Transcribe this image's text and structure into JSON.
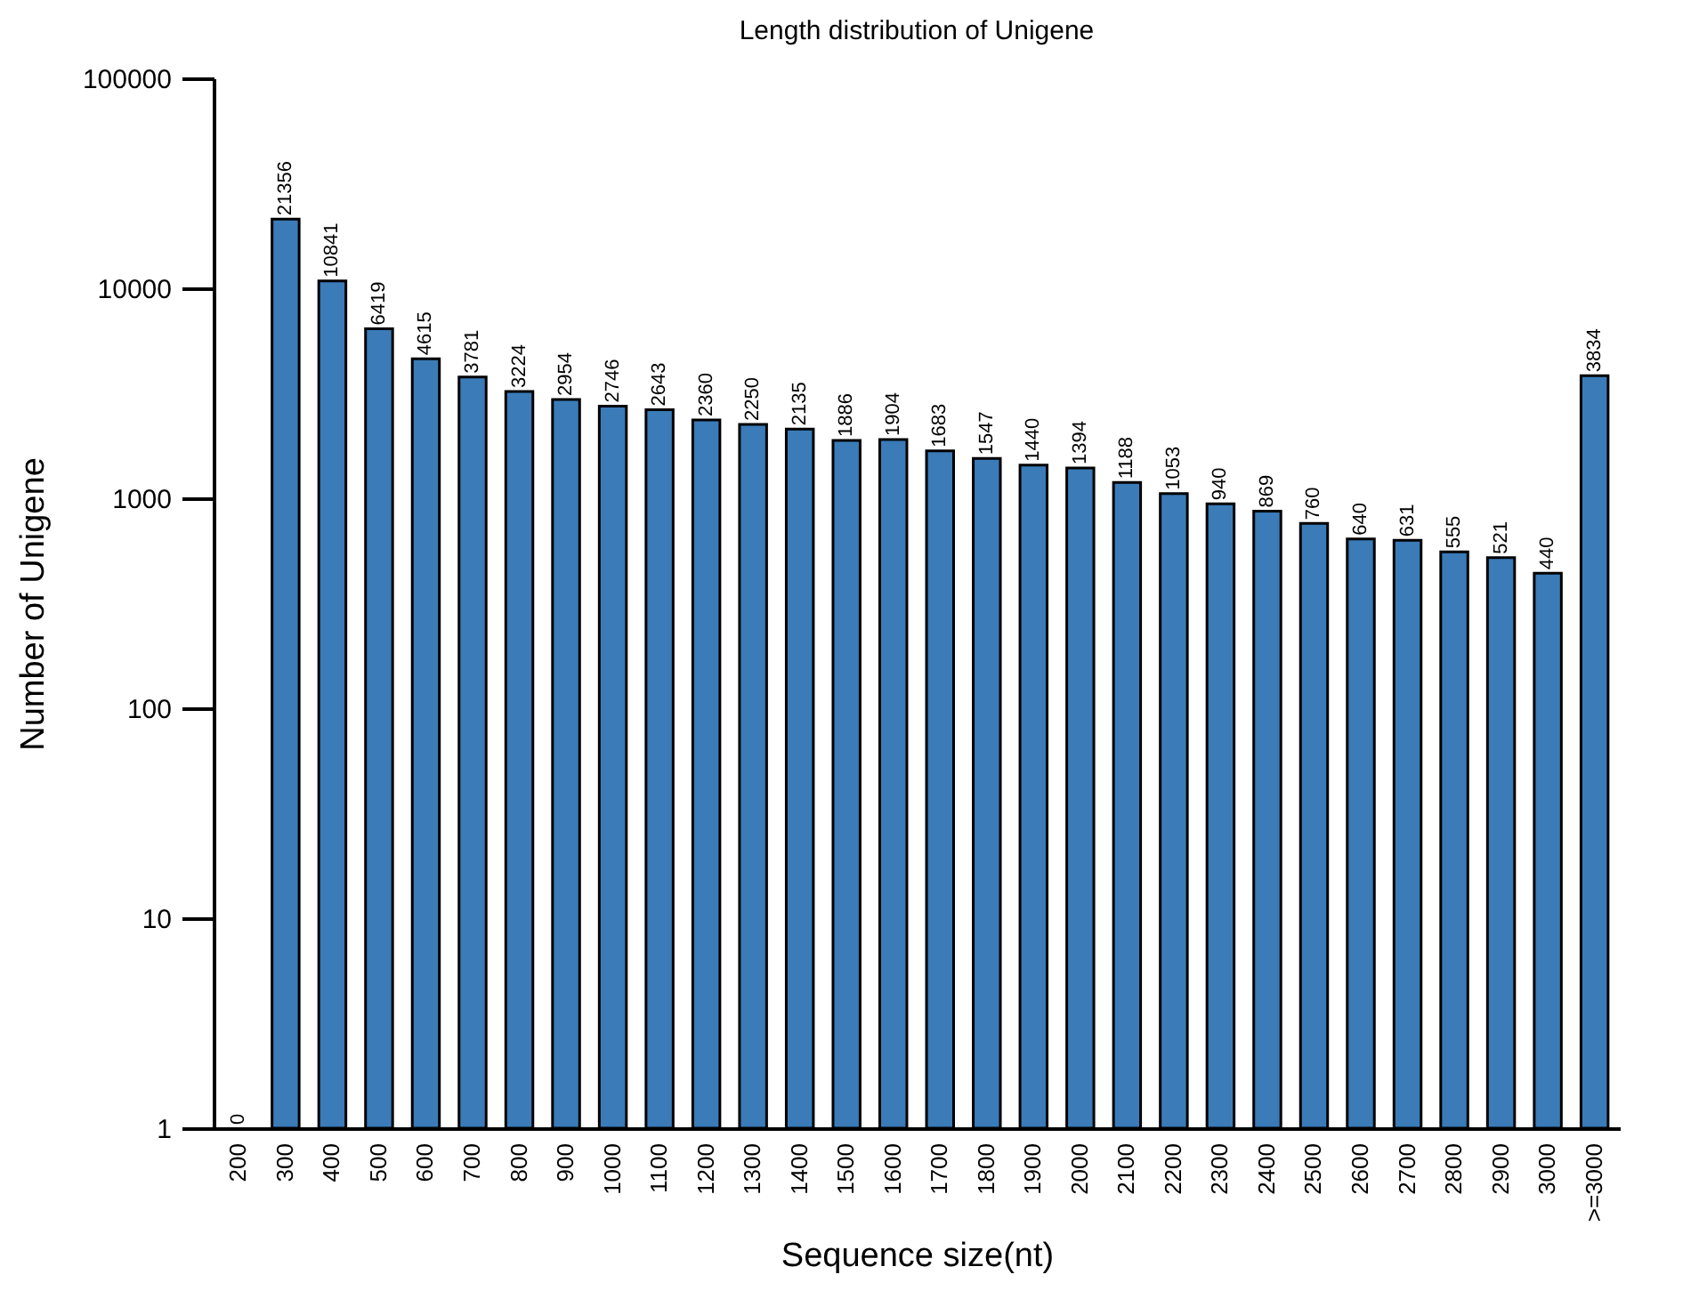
{
  "chart_data": {
    "type": "bar",
    "title": "Length distribution of Unigene",
    "xlabel": "Sequence size(nt)",
    "ylabel": "Number of Unigene",
    "categories": [
      "200",
      "300",
      "400",
      "500",
      "600",
      "700",
      "800",
      "900",
      "1000",
      "1100",
      "1200",
      "1300",
      "1400",
      "1500",
      "1600",
      "1700",
      "1800",
      "1900",
      "2000",
      "2100",
      "2200",
      "2300",
      "2400",
      "2500",
      "2600",
      "2700",
      "2800",
      "2900",
      "3000",
      ">=3000"
    ],
    "values": [
      null,
      21356,
      10841,
      6419,
      4615,
      3781,
      3224,
      2954,
      2746,
      2643,
      2360,
      2250,
      2135,
      1886,
      1904,
      1683,
      1547,
      1440,
      1394,
      1188,
      1053,
      940,
      869,
      760,
      640,
      631,
      555,
      521,
      440,
      3834
    ],
    "value_labels": [
      "0",
      "21356",
      "10841",
      "6419",
      "4615",
      "3781",
      "3224",
      "2954",
      "2746",
      "2643",
      "2360",
      "2250",
      "2135",
      "1886",
      "1904",
      "1683",
      "1547",
      "1440",
      "1394",
      "1188",
      "1053",
      "940",
      "869",
      "760",
      "640",
      "631",
      "555",
      "521",
      "440",
      "3834"
    ],
    "color": "#3a7bb8",
    "log": true,
    "ylim": [
      1,
      100000
    ],
    "yticks": [
      1,
      10,
      100,
      1000,
      10000,
      100000
    ],
    "grid": false
  }
}
